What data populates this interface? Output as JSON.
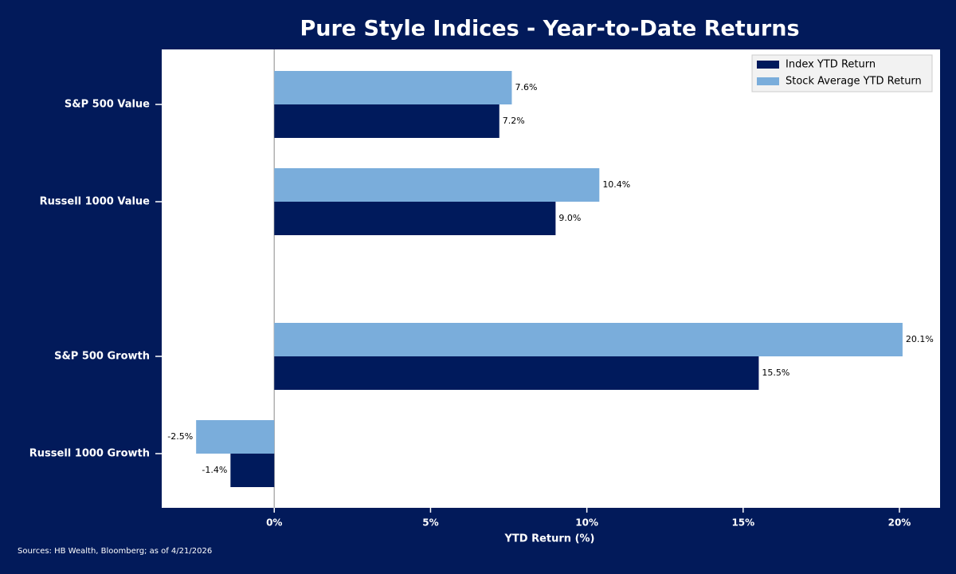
{
  "chart_data": {
    "type": "hbar",
    "title": "Pure Style Indices - Year-to-Date Returns",
    "categories": [
      "S&P 500 Value",
      "Russell 1000 Value",
      "S&P 500 Growth",
      "Russell 1000 Growth"
    ],
    "series": [
      {
        "name": "Index YTD Return",
        "color": "#001a5c",
        "values": [
          7.2,
          9,
          15.5,
          -1.4
        ],
        "value_labels": [
          "7.2%",
          "9.0%",
          "15.5%",
          "-1.4%"
        ]
      },
      {
        "name": "Stock Average YTD Return",
        "color": "#7aaddb",
        "values": [
          7.6,
          10.4,
          20.1,
          -2.5
        ],
        "value_labels": [
          "7.6%",
          "10.4%",
          "20.1%",
          "-2.5%"
        ]
      }
    ],
    "xlabel": "YTD Return (%)",
    "xlim": [
      -3.6,
      21.3
    ],
    "xticks": [
      {
        "value": 0,
        "label": "0%"
      },
      {
        "value": 5,
        "label": "5%"
      },
      {
        "value": 10,
        "label": "10%"
      },
      {
        "value": 15,
        "label": "15%"
      },
      {
        "value": 20,
        "label": "20%"
      }
    ],
    "legend": "upper right",
    "source": "Sources: HB Wealth, Bloomberg; as of 4/21/2026"
  }
}
